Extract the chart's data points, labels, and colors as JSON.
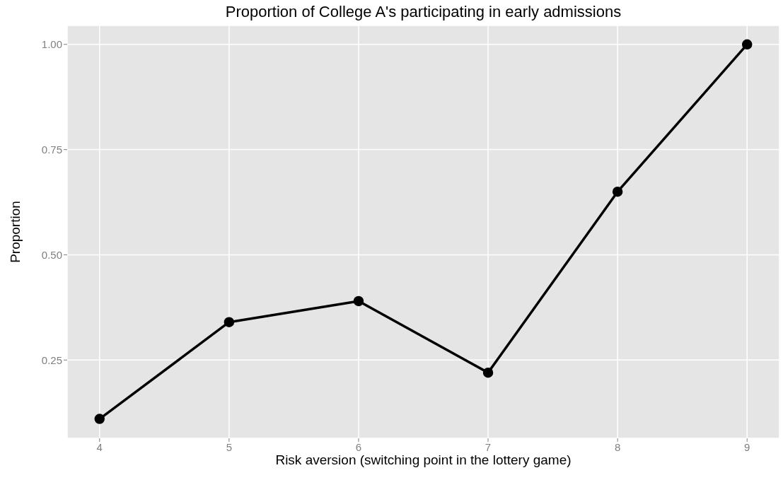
{
  "chart_data": {
    "type": "line",
    "title": "Proportion of College A's participating in early admissions",
    "xlabel": "Risk aversion (switching point in the lottery game)",
    "ylabel": "Proportion",
    "x": [
      4,
      5,
      6,
      7,
      8,
      9
    ],
    "series": [
      {
        "color": "#000000",
        "values": [
          0.11,
          0.34,
          0.39,
          0.22,
          0.65,
          1.0
        ]
      }
    ],
    "xlim": [
      3.75,
      9.25
    ],
    "xticks": [
      4,
      5,
      6,
      7,
      8,
      9
    ],
    "ylim": [
      0.064,
      1.045
    ],
    "yticks": [
      {
        "value": 0.25,
        "label": "0.25"
      },
      {
        "value": 0.5,
        "label": "0.50"
      },
      {
        "value": 0.75,
        "label": "0.75"
      },
      {
        "value": 1,
        "label": "1.00"
      }
    ],
    "grid": true,
    "marker": "circle",
    "line_style": "solid"
  }
}
